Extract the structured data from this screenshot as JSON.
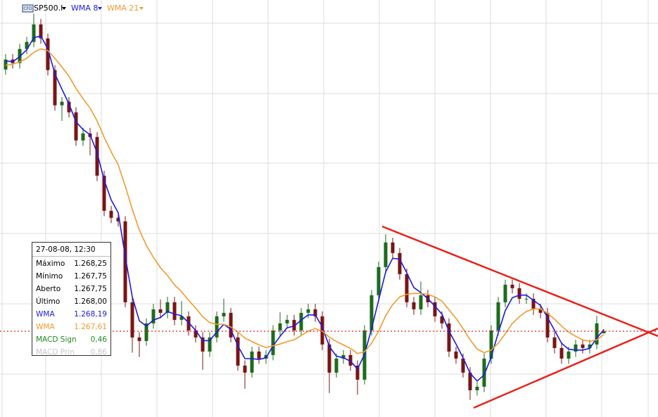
{
  "chart_data": {
    "type": "candlestick",
    "title": "SP500.I",
    "open": [
      1298.5,
      1299.66,
      1299.25,
      1300.89,
      1301.71,
      1303.76,
      1302.12,
      1298.43,
      1294.33,
      1294.74,
      1293.51,
      1290.23,
      1291.05,
      1290.64,
      1286.13,
      1282.03,
      1281.21,
      1280.8,
      1271.37,
      1267.27,
      1266.86,
      1268.91,
      1270.55,
      1270.14,
      1271.37,
      1269.32,
      1269.73,
      1268.09,
      1267.27,
      1265.63,
      1267.27,
      1269.73,
      1270.14,
      1267.27,
      1263.99,
      1263.17,
      1265.63,
      1264.81,
      1265.22,
      1268.09,
      1268.91,
      1269.32,
      1268.09,
      1270.14,
      1270.55,
      1269.73,
      1266.45,
      1263.17,
      1264.81,
      1265.22,
      1263.99,
      1262.35,
      1268.09,
      1272.19,
      1275.47,
      1278.34,
      1277.11,
      1274.65,
      1271.37,
      1270.55,
      1272.19,
      1271.37,
      1269.73,
      1268.91,
      1265.63,
      1264.81,
      1263.17,
      1261.12,
      1261.53,
      1264.81,
      1268.09,
      1271.37,
      1273.42,
      1273.01,
      1271.78,
      1271.78,
      1270.55,
      1270.14,
      1267.27,
      1266.04,
      1264.81,
      1265.63,
      1266.45,
      1266.04,
      1266.45,
      1267.75
    ],
    "high": [
      1300.3,
      1300.3,
      1301.5,
      1302.3,
      1305.0,
      1304.4,
      1302.7,
      1299.0,
      1295.3,
      1295.3,
      1294.1,
      1291.7,
      1291.7,
      1291.2,
      1286.7,
      1282.6,
      1281.8,
      1281.4,
      1272.0,
      1267.9,
      1269.5,
      1271.2,
      1271.7,
      1272.0,
      1272.0,
      1271.5,
      1270.3,
      1268.7,
      1267.9,
      1267.9,
      1270.3,
      1271.8,
      1270.7,
      1267.9,
      1264.6,
      1266.2,
      1266.2,
      1265.8,
      1268.7,
      1270.2,
      1269.9,
      1269.9,
      1270.7,
      1271.2,
      1271.2,
      1270.3,
      1267.1,
      1265.4,
      1265.8,
      1265.8,
      1264.6,
      1268.7,
      1272.8,
      1276.1,
      1279.3,
      1278.9,
      1277.7,
      1275.3,
      1272.0,
      1273.8,
      1272.8,
      1272.0,
      1270.3,
      1269.5,
      1266.2,
      1265.4,
      1263.8,
      1262.1,
      1265.4,
      1268.7,
      1272.0,
      1274.0,
      1274.0,
      1273.6,
      1272.4,
      1272.4,
      1271.2,
      1270.7,
      1267.9,
      1266.6,
      1266.2,
      1267.0,
      1267.0,
      1267.0,
      1269.8,
      1268.25
    ],
    "low": [
      1297.9,
      1298.6,
      1298.6,
      1300.3,
      1301.1,
      1301.5,
      1297.8,
      1293.7,
      1292.5,
      1292.9,
      1289.6,
      1289.6,
      1288.5,
      1285.5,
      1281.4,
      1280.6,
      1280.2,
      1270.8,
      1265.5,
      1265.0,
      1266.3,
      1268.3,
      1269.5,
      1269.5,
      1268.7,
      1268.7,
      1267.5,
      1266.7,
      1263.5,
      1265.0,
      1266.7,
      1269.1,
      1266.7,
      1263.4,
      1261.3,
      1262.6,
      1264.2,
      1264.2,
      1264.6,
      1267.5,
      1268.3,
      1267.5,
      1267.5,
      1269.5,
      1269.1,
      1265.8,
      1260.8,
      1262.6,
      1264.2,
      1263.4,
      1260.6,
      1261.8,
      1267.5,
      1271.6,
      1274.9,
      1276.5,
      1274.0,
      1270.8,
      1269.9,
      1269.9,
      1270.8,
      1269.1,
      1268.3,
      1265.0,
      1264.2,
      1262.6,
      1260.0,
      1260.5,
      1260.9,
      1264.2,
      1267.5,
      1270.8,
      1272.4,
      1271.2,
      1271.2,
      1269.9,
      1269.5,
      1266.7,
      1265.4,
      1264.2,
      1264.2,
      1265.0,
      1265.4,
      1265.4,
      1265.9,
      1267.75
    ],
    "close": [
      1299.66,
      1299.25,
      1300.89,
      1301.71,
      1303.76,
      1302.12,
      1298.43,
      1294.33,
      1294.74,
      1293.51,
      1290.23,
      1291.05,
      1290.64,
      1286.13,
      1282.03,
      1281.21,
      1280.8,
      1271.37,
      1267.27,
      1266.86,
      1268.91,
      1270.55,
      1270.14,
      1271.37,
      1269.32,
      1269.73,
      1268.09,
      1267.27,
      1265.63,
      1267.27,
      1269.73,
      1270.14,
      1267.27,
      1263.99,
      1263.17,
      1265.63,
      1264.81,
      1265.22,
      1268.09,
      1268.91,
      1269.32,
      1268.09,
      1270.14,
      1270.55,
      1269.73,
      1266.45,
      1263.17,
      1264.81,
      1265.22,
      1263.99,
      1262.35,
      1268.09,
      1272.19,
      1275.47,
      1278.34,
      1277.11,
      1274.65,
      1271.37,
      1270.55,
      1272.19,
      1271.37,
      1269.73,
      1268.91,
      1265.63,
      1264.81,
      1263.17,
      1261.12,
      1261.53,
      1264.81,
      1268.09,
      1271.37,
      1273.42,
      1273.01,
      1271.78,
      1271.78,
      1270.55,
      1270.14,
      1267.27,
      1266.04,
      1264.81,
      1265.63,
      1266.45,
      1266.04,
      1266.45,
      1268.91,
      1268.0
    ],
    "up_color": "#1c6b1c",
    "down_color": "#7a1414",
    "series": [
      {
        "name": "WMA 8",
        "color": "#1a1ae6",
        "values": [
          1299.5,
          1299.4,
          1300.0,
          1300.8,
          1302.2,
          1302.4,
          1300.9,
          1298.0,
          1296.2,
          1294.5,
          1292.4,
          1291.5,
          1290.9,
          1288.8,
          1285.6,
          1283.3,
          1281.8,
          1276.7,
          1272.0,
          1269.2,
          1268.6,
          1269.3,
          1269.6,
          1270.3,
          1270.0,
          1269.8,
          1269.0,
          1268.1,
          1266.9,
          1266.9,
          1267.9,
          1268.8,
          1268.2,
          1266.3,
          1264.8,
          1264.8,
          1264.7,
          1264.9,
          1266.3,
          1267.4,
          1268.4,
          1268.6,
          1269.3,
          1269.9,
          1269.9,
          1268.5,
          1266.2,
          1265.1,
          1264.9,
          1264.5,
          1263.6,
          1265.3,
          1268.3,
          1271.6,
          1274.9,
          1276.5,
          1276.4,
          1274.8,
          1273.1,
          1272.5,
          1271.8,
          1270.9,
          1270.0,
          1268.0,
          1266.5,
          1264.9,
          1263.1,
          1262.2,
          1262.9,
          1265.0,
          1267.8,
          1270.4,
          1271.9,
          1272.2,
          1272.2,
          1271.6,
          1271.0,
          1269.6,
          1268.1,
          1266.6,
          1265.9,
          1265.8,
          1265.8,
          1266.0,
          1267.2,
          1268.19
        ]
      },
      {
        "name": "WMA 21",
        "color": "#f39a2c",
        "values": [
          1299.0,
          1299.1,
          1299.4,
          1299.8,
          1300.5,
          1300.9,
          1300.7,
          1299.8,
          1298.8,
          1297.7,
          1296.3,
          1295.1,
          1294.0,
          1292.5,
          1290.6,
          1288.9,
          1287.4,
          1284.9,
          1282.2,
          1279.8,
          1278.0,
          1276.6,
          1275.4,
          1274.5,
          1273.4,
          1272.6,
          1271.6,
          1270.7,
          1269.7,
          1269.0,
          1268.8,
          1268.8,
          1268.5,
          1267.9,
          1267.2,
          1266.8,
          1266.4,
          1266.1,
          1266.3,
          1266.5,
          1266.8,
          1267.0,
          1267.5,
          1268.0,
          1268.3,
          1268.0,
          1267.3,
          1266.8,
          1266.4,
          1266.0,
          1265.4,
          1265.6,
          1266.6,
          1268.0,
          1269.8,
          1271.1,
          1272.0,
          1272.3,
          1272.4,
          1272.4,
          1272.3,
          1272.0,
          1271.5,
          1270.5,
          1269.5,
          1268.3,
          1267.0,
          1265.9,
          1265.5,
          1265.8,
          1266.6,
          1267.7,
          1268.9,
          1269.7,
          1270.3,
          1270.6,
          1270.6,
          1270.1,
          1269.4,
          1268.6,
          1267.9,
          1267.4,
          1267.0,
          1266.8,
          1267.0,
          1267.61
        ]
      }
    ],
    "ylim": [
      1258,
      1306.6
    ],
    "grid": true
  },
  "info_box": {
    "date": "27-08-08, 12:30",
    "rows": [
      [
        "Máximo",
        "1.268,25"
      ],
      [
        "Mínimo",
        "1.267,75"
      ],
      [
        "Aberto",
        "1.267,75"
      ],
      [
        "Último",
        "1.268,00"
      ],
      [
        "WMA",
        "1.268,19"
      ],
      [
        "WMA",
        "1.267,61"
      ],
      [
        "MACD Sign",
        "0,46"
      ],
      [
        "MACD Prin",
        "0,86"
      ]
    ]
  },
  "header_icon": "CFD"
}
